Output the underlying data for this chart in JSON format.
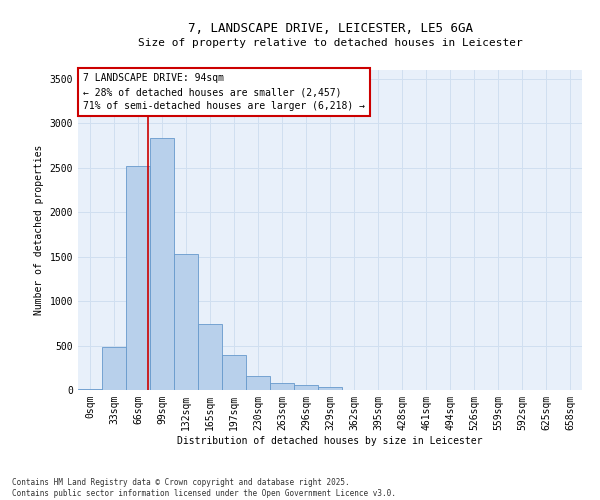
{
  "title": "7, LANDSCAPE DRIVE, LEICESTER, LE5 6GA",
  "subtitle": "Size of property relative to detached houses in Leicester",
  "xlabel": "Distribution of detached houses by size in Leicester",
  "ylabel": "Number of detached properties",
  "footnote": "Contains HM Land Registry data © Crown copyright and database right 2025.\nContains public sector information licensed under the Open Government Licence v3.0.",
  "bar_labels": [
    "0sqm",
    "33sqm",
    "66sqm",
    "99sqm",
    "132sqm",
    "165sqm",
    "197sqm",
    "230sqm",
    "263sqm",
    "296sqm",
    "329sqm",
    "362sqm",
    "395sqm",
    "428sqm",
    "461sqm",
    "494sqm",
    "526sqm",
    "559sqm",
    "592sqm",
    "625sqm",
    "658sqm"
  ],
  "bar_values": [
    10,
    480,
    2520,
    2840,
    1530,
    740,
    390,
    155,
    80,
    55,
    30,
    5,
    0,
    0,
    0,
    0,
    0,
    0,
    0,
    0,
    0
  ],
  "bar_color": "#b8d0eb",
  "bar_edge_color": "#6699cc",
  "grid_color": "#d0dff0",
  "background_color": "#e8f0fa",
  "vline_color": "#cc0000",
  "vline_pos": 2.4,
  "annotation_text_line1": "7 LANDSCAPE DRIVE: 94sqm",
  "annotation_text_line2": "← 28% of detached houses are smaller (2,457)",
  "annotation_text_line3": "71% of semi-detached houses are larger (6,218) →",
  "ylim": [
    0,
    3600
  ],
  "yticks": [
    0,
    500,
    1000,
    1500,
    2000,
    2500,
    3000,
    3500
  ],
  "title_fontsize": 9,
  "subtitle_fontsize": 8,
  "axis_fontsize": 7,
  "tick_fontsize": 7,
  "annot_fontsize": 7,
  "footnote_fontsize": 5.5
}
